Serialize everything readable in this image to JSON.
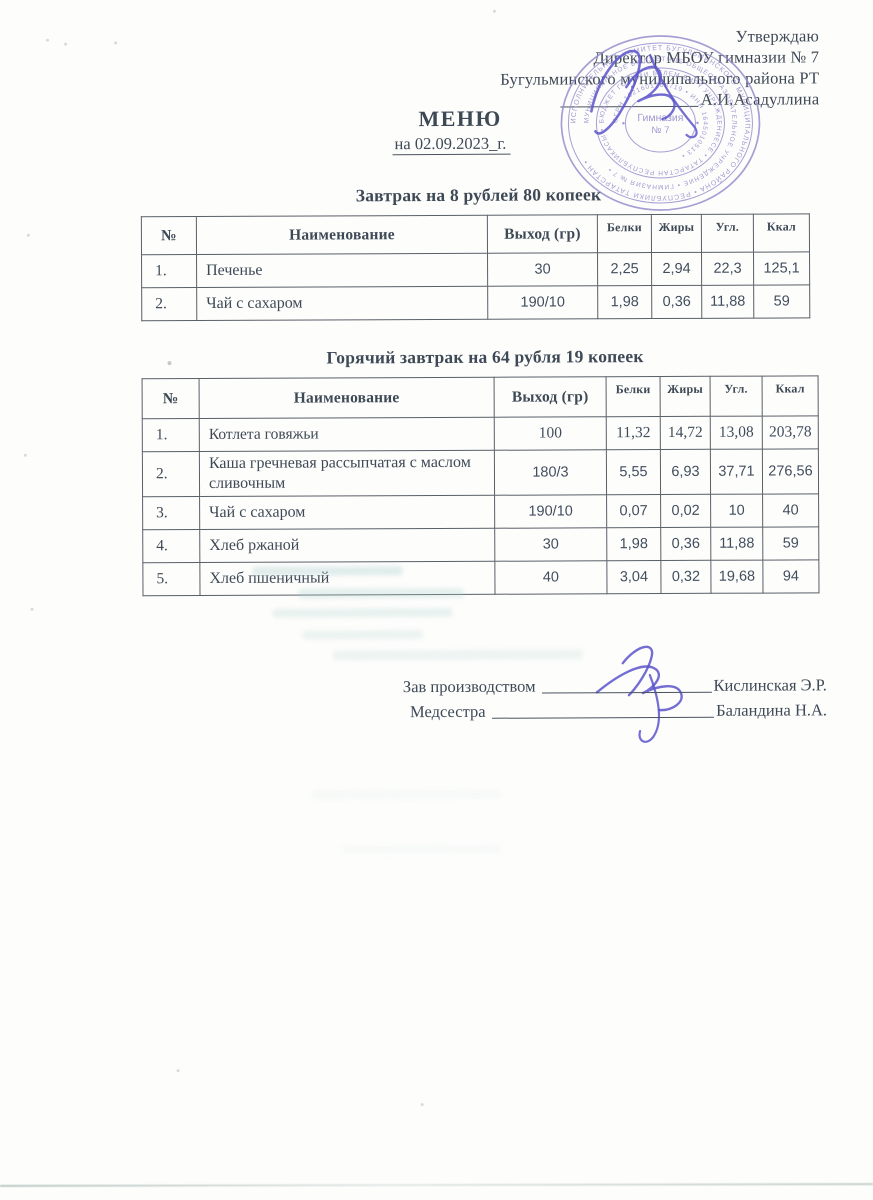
{
  "approval": {
    "line1": "Утверждаю",
    "line2": "Директор МБОУ гимназии № 7",
    "line3": "Бугульминского муниципального района РТ",
    "signer": "А.И.Асадуллина"
  },
  "menu": {
    "title": "МЕНЮ",
    "date_line": "на 02.09.2023_г."
  },
  "stamp": {
    "center_line1": "Гимназия",
    "center_line2": "№ 7",
    "ring_outer": "ИСПОЛНИТЕЛЬНЫЙ КОМИТЕТ БУГУЛЬМИНСКОГО МУНИЦИПАЛЬНОГО РАЙОНА • РЕСПУБЛИКИ ТАТАРСТАН • ",
    "ring_middle": "МУНИЦИПАЛЬНОЕ БЮДЖЕТНОЕ ОБЩЕОБРАЗОВАТЕЛЬНОЕ УЧРЕЖДЕНИЕ • ГИМНАЗИЯ № 7 • ",
    "ring_tatar": "БЮДЖЕТ ГОМУМИ БЕЛЕМ БИРҮ УЧРЕЖДЕНИЕСЕ • ТАТАРСТАН РЕСПУБЛИКАСЫ • ",
    "ring_inner": "ОГРН 1021601763719 • ИНН 1645010513 • ",
    "color": "#8f84c8"
  },
  "tables": [
    {
      "title": "Завтрак на 8 рублей 80 копеек",
      "columns": [
        "№",
        "Наименование",
        "Выход (гр)",
        "Белки",
        "Жиры",
        "Угл.",
        "Ккал"
      ],
      "rows": [
        [
          "1.",
          "Печенье",
          "30",
          "2,25",
          "2,94",
          "22,3",
          "125,1"
        ],
        [
          "2.",
          "Чай с сахаром",
          "190/10",
          "1,98",
          "0,36",
          "11,88",
          "59"
        ]
      ]
    },
    {
      "title": "Горячий завтрак на 64 рубля 19 копеек",
      "columns": [
        "№",
        "Наименование",
        "Выход (гр)",
        "Белки",
        "Жиры",
        "Угл.",
        "Ккал"
      ],
      "rows": [
        [
          "1.",
          "Котлета говяжьи",
          "100",
          "11,32",
          "14,72",
          "13,08",
          "203,78"
        ],
        [
          "2.",
          "Каша гречневая рассыпчатая с маслом сливочным",
          "180/3",
          "5,55",
          "6,93",
          "37,71",
          "276,56"
        ],
        [
          "3.",
          "Чай с сахаром",
          "190/10",
          "0,07",
          "0,02",
          "10",
          "40"
        ],
        [
          "4.",
          "Хлеб ржаной",
          "30",
          "1,98",
          "0,36",
          "11,88",
          "59"
        ],
        [
          "5.",
          "Хлеб пшеничный",
          "40",
          "3,04",
          "0,32",
          "19,68",
          "94"
        ]
      ]
    }
  ],
  "signatures": [
    {
      "label": "Зав производством",
      "name": "Кислинская Э.Р."
    },
    {
      "label": "Медсестра",
      "name": "Баландина Н.А."
    }
  ],
  "colors": {
    "ink": "#3e4956",
    "stamp_purple": "#8f84c8",
    "pen_blue": "#5c55cb",
    "paper": "#fdfdfc"
  }
}
